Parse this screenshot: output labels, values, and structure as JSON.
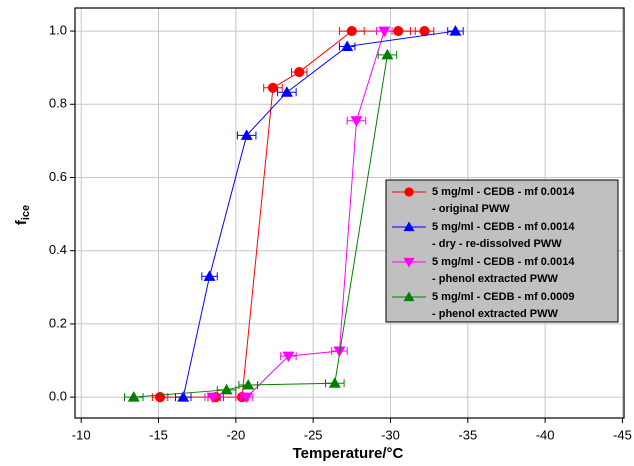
{
  "chart_data": {
    "type": "line",
    "x_label": "Temperature/°C",
    "y_label": [
      "f",
      "ice"
    ],
    "xlim": [
      -9.6,
      -45.1
    ],
    "ylim": [
      -0.057,
      1.063
    ],
    "xticks": [
      -10,
      -15,
      -20,
      -25,
      -30,
      -35,
      -40,
      -45
    ],
    "yticks": [
      {
        "value": 0,
        "label": "0.0"
      },
      {
        "value": 0.2,
        "label": "0.2"
      },
      {
        "value": 0.4,
        "label": "0.4"
      },
      {
        "value": 0.6,
        "label": "0.6"
      },
      {
        "value": 0.8,
        "label": "0.8"
      },
      {
        "value": 1,
        "label": "1.0"
      }
    ],
    "grid": true,
    "legend": "right",
    "series": [
      {
        "name": [
          "5 mg/ml - CEDB - mf 0.0014",
          "- original PWW"
        ],
        "color": "#ff0000",
        "marker": "circle",
        "x": [
          -15.1,
          -18.7,
          -20.4,
          -22.4,
          -24.1,
          -27.5,
          -30.5,
          -32.2
        ],
        "xerr": [
          0.5,
          0.5,
          0.4,
          0.6,
          0.5,
          0.8,
          0.8,
          0.6
        ],
        "values": [
          0,
          0,
          0,
          0.845,
          0.888,
          1,
          1,
          1
        ]
      },
      {
        "name": [
          "5 mg/ml - CEDB - mf 0.0014",
          "- dry - re-dissolved PWW"
        ],
        "color": "#0000ff",
        "marker": "triangle-up",
        "x": [
          -16.6,
          -18.3,
          -20.7,
          -23.3,
          -27.2,
          -34.2
        ],
        "xerr": [
          0.5,
          0.5,
          0.6,
          0.6,
          0.5,
          0.5
        ],
        "values": [
          0,
          0.33,
          0.715,
          0.833,
          0.958,
          1
        ]
      },
      {
        "name": [
          "5 mg/ml - CEDB - mf 0.0014",
          "- phenol extracted PWW"
        ],
        "color": "#ff00ff",
        "marker": "triangle-down",
        "x": [
          -18.5,
          -20.7,
          -23.4,
          -26.7,
          -27.8,
          -29.6
        ],
        "xerr": [
          0.5,
          0.4,
          0.5,
          0.5,
          0.6,
          0.5
        ],
        "values": [
          0,
          0,
          0.112,
          0.126,
          0.755,
          1
        ]
      },
      {
        "name": [
          "5 mg/ml - CEDB - mf 0.0009",
          "- phenol extracted PWW"
        ],
        "color": "#008000",
        "marker": "triangle-up",
        "x": [
          -13.4,
          -19.4,
          -20.8,
          -26.4,
          -29.8
        ],
        "xerr": [
          0.6,
          0.6,
          0.6,
          0.6,
          0.6
        ],
        "values": [
          0,
          0.02,
          0.033,
          0.038,
          0.935
        ]
      }
    ]
  }
}
